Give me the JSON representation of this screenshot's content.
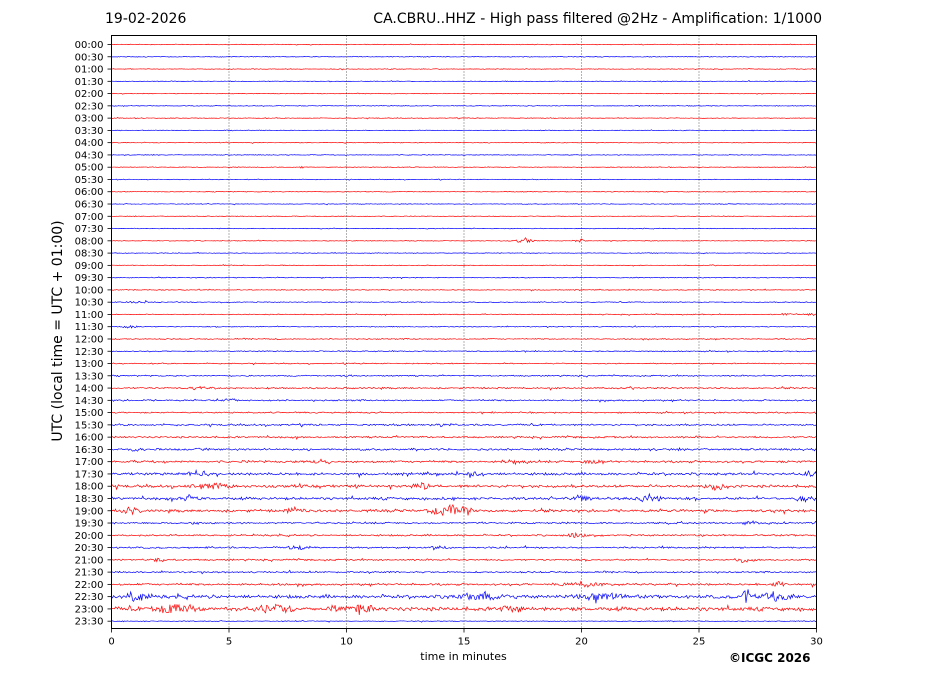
{
  "header": {
    "date": "19-02-2026",
    "title": "CA.CBRU..HHZ - High pass filtered @2Hz - Amplification: 1/1000"
  },
  "credit": "©ICGC 2026",
  "chart_data": {
    "type": "line",
    "title": "CA.CBRU..HHZ - High pass filtered @2Hz - Amplification: 1/1000",
    "xlabel": "time in minutes",
    "ylabel": "UTC (local time = UTC + 01:00)",
    "xlim": [
      0,
      30
    ],
    "xticks": [
      0,
      5,
      10,
      15,
      20,
      25,
      30
    ],
    "vertical_gridlines": [
      5,
      10,
      15,
      20,
      25
    ],
    "trace_colors": [
      "#ff0000",
      "#0000ff"
    ],
    "rows": [
      "00:00",
      "00:30",
      "01:00",
      "01:30",
      "02:00",
      "02:30",
      "03:00",
      "03:30",
      "04:00",
      "04:30",
      "05:00",
      "05:30",
      "06:00",
      "06:30",
      "07:00",
      "07:30",
      "08:00",
      "08:30",
      "09:00",
      "09:30",
      "10:00",
      "10:30",
      "11:00",
      "11:30",
      "12:00",
      "12:30",
      "13:00",
      "13:30",
      "14:00",
      "14:30",
      "15:00",
      "15:30",
      "16:00",
      "16:30",
      "17:00",
      "17:30",
      "18:00",
      "18:30",
      "19:00",
      "19:30",
      "20:00",
      "20:30",
      "21:00",
      "21:30",
      "22:00",
      "22:30",
      "23:00",
      "23:30"
    ],
    "baseline_noise": [
      0.4,
      0.4,
      0.4,
      0.4,
      0.4,
      0.4,
      0.4,
      0.4,
      0.4,
      0.4,
      0.4,
      0.4,
      0.4,
      0.4,
      0.4,
      0.4,
      0.4,
      0.4,
      0.4,
      0.5,
      0.5,
      0.5,
      0.5,
      0.5,
      0.6,
      0.6,
      0.6,
      0.7,
      0.9,
      0.9,
      0.8,
      1.0,
      1.0,
      1.2,
      1.3,
      1.5,
      1.6,
      1.5,
      1.5,
      1.0,
      1.0,
      1.0,
      0.9,
      0.9,
      1.2,
      2.0,
      2.2,
      0.5
    ],
    "events": [
      {
        "row": "05:00",
        "minute": 8.1,
        "amplitude": 1.2,
        "duration": 0.1
      },
      {
        "row": "08:00",
        "minute": 17.6,
        "amplitude": 3,
        "duration": 0.5
      },
      {
        "row": "08:00",
        "minute": 20.0,
        "amplitude": 2.5,
        "duration": 0.4
      },
      {
        "row": "10:30",
        "minute": 1.2,
        "amplitude": 1.2,
        "duration": 0.7
      },
      {
        "row": "11:00",
        "minute": 28.8,
        "amplitude": 1.5,
        "duration": 0.5
      },
      {
        "row": "11:00",
        "minute": 29.8,
        "amplitude": 1.5,
        "duration": 0.3
      },
      {
        "row": "11:30",
        "minute": 0.8,
        "amplitude": 1.5,
        "duration": 0.6
      },
      {
        "row": "13:30",
        "minute": 10.0,
        "amplitude": 1.2,
        "duration": 0.3
      },
      {
        "row": "14:00",
        "minute": 3.8,
        "amplitude": 2.0,
        "duration": 0.8
      },
      {
        "row": "14:30",
        "minute": 4.9,
        "amplitude": 1.8,
        "duration": 0.6
      },
      {
        "row": "15:30",
        "minute": 14.0,
        "amplitude": 2.0,
        "duration": 0.5
      },
      {
        "row": "16:30",
        "minute": 3.8,
        "amplitude": 2.2,
        "duration": 0.5
      },
      {
        "row": "16:30",
        "minute": 1.0,
        "amplitude": 1.8,
        "duration": 0.5
      },
      {
        "row": "17:00",
        "minute": 9.0,
        "amplitude": 3,
        "duration": 0.6
      },
      {
        "row": "17:00",
        "minute": 17.2,
        "amplitude": 2.5,
        "duration": 0.8
      },
      {
        "row": "17:00",
        "minute": 20.4,
        "amplitude": 3,
        "duration": 0.5
      },
      {
        "row": "17:30",
        "minute": 3.7,
        "amplitude": 4.5,
        "duration": 0.7
      },
      {
        "row": "17:30",
        "minute": 15.5,
        "amplitude": 2.5,
        "duration": 0.5
      },
      {
        "row": "17:30",
        "minute": 29.7,
        "amplitude": 4.0,
        "duration": 0.4
      },
      {
        "row": "18:00",
        "minute": 4.2,
        "amplitude": 3.5,
        "duration": 1.2
      },
      {
        "row": "18:00",
        "minute": 13.2,
        "amplitude": 3.5,
        "duration": 0.6
      },
      {
        "row": "18:00",
        "minute": 25.7,
        "amplitude": 4.5,
        "duration": 0.7
      },
      {
        "row": "18:30",
        "minute": 3.2,
        "amplitude": 3.5,
        "duration": 0.6
      },
      {
        "row": "18:30",
        "minute": 19.9,
        "amplitude": 3.5,
        "duration": 0.8
      },
      {
        "row": "18:30",
        "minute": 22.9,
        "amplitude": 4.5,
        "duration": 0.8
      },
      {
        "row": "18:30",
        "minute": 29.5,
        "amplitude": 3.5,
        "duration": 0.6
      },
      {
        "row": "19:00",
        "minute": 0.6,
        "amplitude": 4.5,
        "duration": 0.8
      },
      {
        "row": "19:00",
        "minute": 7.8,
        "amplitude": 3.0,
        "duration": 0.5
      },
      {
        "row": "19:00",
        "minute": 14.4,
        "amplitude": 6,
        "duration": 1.3
      },
      {
        "row": "19:30",
        "minute": 3.6,
        "amplitude": 2.5,
        "duration": 0.3
      },
      {
        "row": "19:30",
        "minute": 27.2,
        "amplitude": 2.5,
        "duration": 0.4
      },
      {
        "row": "20:00",
        "minute": 19.8,
        "amplitude": 3.0,
        "duration": 0.6
      },
      {
        "row": "20:30",
        "minute": 8.0,
        "amplitude": 3.0,
        "duration": 0.6
      },
      {
        "row": "20:30",
        "minute": 14.0,
        "amplitude": 3.0,
        "duration": 0.6
      },
      {
        "row": "21:00",
        "minute": 2.0,
        "amplitude": 2.5,
        "duration": 0.4
      },
      {
        "row": "21:00",
        "minute": 27.0,
        "amplitude": 3.0,
        "duration": 0.6
      },
      {
        "row": "22:00",
        "minute": 20.0,
        "amplitude": 2.5,
        "duration": 1.6
      },
      {
        "row": "22:00",
        "minute": 28.4,
        "amplitude": 3.5,
        "duration": 0.4
      },
      {
        "row": "22:30",
        "minute": 1.0,
        "amplitude": 4.5,
        "duration": 0.7
      },
      {
        "row": "22:30",
        "minute": 15.8,
        "amplitude": 4.5,
        "duration": 1.5
      },
      {
        "row": "22:30",
        "minute": 20.8,
        "amplitude": 4.5,
        "duration": 1.3
      },
      {
        "row": "22:30",
        "minute": 27.0,
        "amplitude": 9,
        "duration": 0.2
      },
      {
        "row": "22:30",
        "minute": 28.2,
        "amplitude": 4.5,
        "duration": 1.2
      },
      {
        "row": "23:00",
        "minute": 2.8,
        "amplitude": 7,
        "duration": 1.2
      },
      {
        "row": "23:00",
        "minute": 7.0,
        "amplitude": 5.5,
        "duration": 1.0
      },
      {
        "row": "23:00",
        "minute": 10.5,
        "amplitude": 4.5,
        "duration": 1.2
      },
      {
        "row": "23:00",
        "minute": 17.0,
        "amplitude": 4.0,
        "duration": 0.6
      }
    ]
  }
}
